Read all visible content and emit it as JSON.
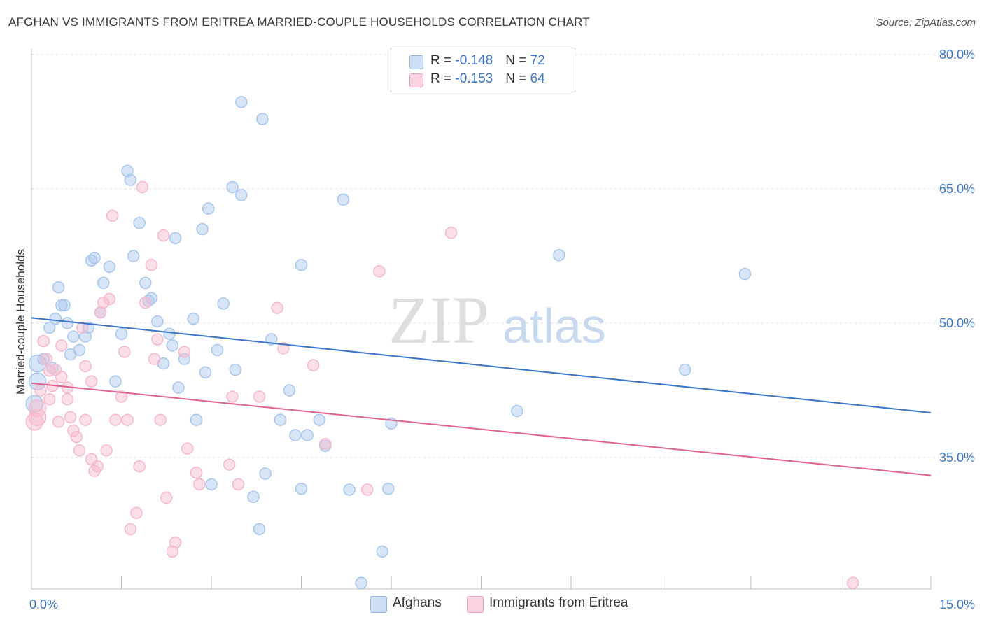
{
  "title": "AFGHAN VS IMMIGRANTS FROM ERITREA MARRIED-COUPLE HOUSEHOLDS CORRELATION CHART",
  "source": "Source: ZipAtlas.com",
  "watermark": {
    "zip": "ZIP",
    "atlas": "atlas"
  },
  "legend": {
    "rows": [
      {
        "r_label": "R = ",
        "r_value": "-0.148",
        "n_label": "N = ",
        "n_value": "72",
        "color": "#a7c6ee"
      },
      {
        "r_label": "R = ",
        "r_value": "-0.153",
        "n_label": "N = ",
        "n_value": "64",
        "color": "#f6b8cb"
      }
    ]
  },
  "bottom_legend": [
    {
      "label": "Afghans",
      "color": "#a7c6ee"
    },
    {
      "label": "Immigrants from Eritrea",
      "color": "#f6b8cb"
    }
  ],
  "chart_data": {
    "type": "scatter",
    "title": "AFGHAN VS IMMIGRANTS FROM ERITREA MARRIED-COUPLE HOUSEHOLDS CORRELATION CHART",
    "xlabel": "",
    "ylabel": "Married-couple Households",
    "xlim": [
      0,
      15
    ],
    "ylim": [
      22,
      81
    ],
    "x_tick_labels": [
      "0.0%",
      "15.0%"
    ],
    "y_ticks": [
      35,
      50,
      65,
      80
    ],
    "y_tick_labels": [
      "35.0%",
      "50.0%",
      "65.0%",
      "80.0%"
    ],
    "grid": true,
    "legend_position": "top-center",
    "series": [
      {
        "name": "Afghans",
        "color": "#3a74c8",
        "fill": "#a7c6ee",
        "trend": {
          "x": [
            0,
            15
          ],
          "y": [
            50.6,
            40.0
          ]
        },
        "points": [
          [
            0.1,
            45.5
          ],
          [
            0.1,
            43.5
          ],
          [
            0.05,
            41.0
          ],
          [
            0.2,
            46.0
          ],
          [
            0.3,
            49.5
          ],
          [
            0.35,
            45.0
          ],
          [
            0.4,
            50.5
          ],
          [
            0.45,
            54.0
          ],
          [
            0.5,
            52.0
          ],
          [
            0.55,
            52.0
          ],
          [
            0.6,
            50.0
          ],
          [
            0.65,
            46.5
          ],
          [
            0.7,
            48.5
          ],
          [
            0.8,
            47.0
          ],
          [
            0.9,
            48.5
          ],
          [
            0.95,
            49.5
          ],
          [
            1.0,
            57.0
          ],
          [
            1.05,
            57.3
          ],
          [
            1.15,
            51.2
          ],
          [
            1.2,
            54.5
          ],
          [
            1.3,
            56.3
          ],
          [
            1.4,
            43.5
          ],
          [
            1.5,
            48.8
          ],
          [
            1.6,
            67.0
          ],
          [
            1.65,
            66.0
          ],
          [
            1.7,
            57.5
          ],
          [
            1.8,
            61.2
          ],
          [
            1.9,
            54.5
          ],
          [
            1.95,
            52.5
          ],
          [
            2.0,
            52.8
          ],
          [
            2.1,
            50.2
          ],
          [
            2.2,
            45.5
          ],
          [
            2.3,
            48.8
          ],
          [
            2.35,
            47.5
          ],
          [
            2.4,
            59.5
          ],
          [
            2.45,
            42.8
          ],
          [
            2.55,
            46.0
          ],
          [
            2.7,
            50.5
          ],
          [
            2.75,
            39.2
          ],
          [
            2.85,
            60.5
          ],
          [
            2.9,
            44.5
          ],
          [
            2.95,
            62.8
          ],
          [
            3.0,
            32.0
          ],
          [
            3.1,
            47.0
          ],
          [
            3.2,
            52.2
          ],
          [
            3.35,
            65.2
          ],
          [
            3.4,
            44.8
          ],
          [
            3.5,
            64.3
          ],
          [
            3.5,
            74.7
          ],
          [
            3.7,
            30.6
          ],
          [
            3.8,
            27.0
          ],
          [
            3.85,
            72.8
          ],
          [
            3.9,
            33.2
          ],
          [
            4.0,
            48.2
          ],
          [
            4.15,
            39.2
          ],
          [
            4.3,
            42.5
          ],
          [
            4.4,
            37.5
          ],
          [
            4.5,
            56.5
          ],
          [
            4.8,
            39.2
          ],
          [
            4.9,
            36.3
          ],
          [
            4.6,
            37.5
          ],
          [
            5.2,
            63.8
          ],
          [
            5.5,
            21.0
          ],
          [
            4.5,
            31.5
          ],
          [
            5.85,
            24.5
          ],
          [
            6.0,
            38.8
          ],
          [
            5.95,
            31.5
          ],
          [
            8.1,
            40.2
          ],
          [
            8.8,
            57.6
          ],
          [
            10.9,
            44.8
          ],
          [
            11.9,
            55.5
          ],
          [
            5.3,
            31.4
          ]
        ]
      },
      {
        "name": "Immigrants from Eritrea",
        "color": "#e0608f",
        "fill": "#f6b8cb",
        "trend": {
          "x": [
            0,
            15
          ],
          "y": [
            43.3,
            33.0
          ]
        },
        "points": [
          [
            0.05,
            39.0
          ],
          [
            0.1,
            40.5
          ],
          [
            0.15,
            42.5
          ],
          [
            0.2,
            48.0
          ],
          [
            0.25,
            46.0
          ],
          [
            0.3,
            41.5
          ],
          [
            0.35,
            43.0
          ],
          [
            0.4,
            44.8
          ],
          [
            0.45,
            39.0
          ],
          [
            0.5,
            44.0
          ],
          [
            0.5,
            47.5
          ],
          [
            0.6,
            42.8
          ],
          [
            0.65,
            39.5
          ],
          [
            0.7,
            38.0
          ],
          [
            0.75,
            37.3
          ],
          [
            0.8,
            35.8
          ],
          [
            0.85,
            49.5
          ],
          [
            0.9,
            39.2
          ],
          [
            0.9,
            45.2
          ],
          [
            1.0,
            34.8
          ],
          [
            1.05,
            33.5
          ],
          [
            1.1,
            34.0
          ],
          [
            1.15,
            51.2
          ],
          [
            1.2,
            52.3
          ],
          [
            1.25,
            35.8
          ],
          [
            1.3,
            52.7
          ],
          [
            1.35,
            62.0
          ],
          [
            1.4,
            39.2
          ],
          [
            1.5,
            41.8
          ],
          [
            1.55,
            46.8
          ],
          [
            1.6,
            39.2
          ],
          [
            1.65,
            27.0
          ],
          [
            1.75,
            28.8
          ],
          [
            1.8,
            34.0
          ],
          [
            1.85,
            65.2
          ],
          [
            1.9,
            52.3
          ],
          [
            2.0,
            56.5
          ],
          [
            2.05,
            46.0
          ],
          [
            2.1,
            48.2
          ],
          [
            2.15,
            39.2
          ],
          [
            2.2,
            59.8
          ],
          [
            2.25,
            30.5
          ],
          [
            2.35,
            24.5
          ],
          [
            2.4,
            25.5
          ],
          [
            2.55,
            46.8
          ],
          [
            2.6,
            36.0
          ],
          [
            2.75,
            33.3
          ],
          [
            2.8,
            32.0
          ],
          [
            3.3,
            34.2
          ],
          [
            3.35,
            41.8
          ],
          [
            3.45,
            32.0
          ],
          [
            3.8,
            41.8
          ],
          [
            4.1,
            51.7
          ],
          [
            4.2,
            47.2
          ],
          [
            4.7,
            45.3
          ],
          [
            4.9,
            36.5
          ],
          [
            5.6,
            31.4
          ],
          [
            5.8,
            55.8
          ],
          [
            7.0,
            60.1
          ],
          [
            13.7,
            21.0
          ],
          [
            0.1,
            39.5
          ],
          [
            0.3,
            44.7
          ],
          [
            0.6,
            41.5
          ],
          [
            1.0,
            43.5
          ]
        ]
      }
    ]
  }
}
